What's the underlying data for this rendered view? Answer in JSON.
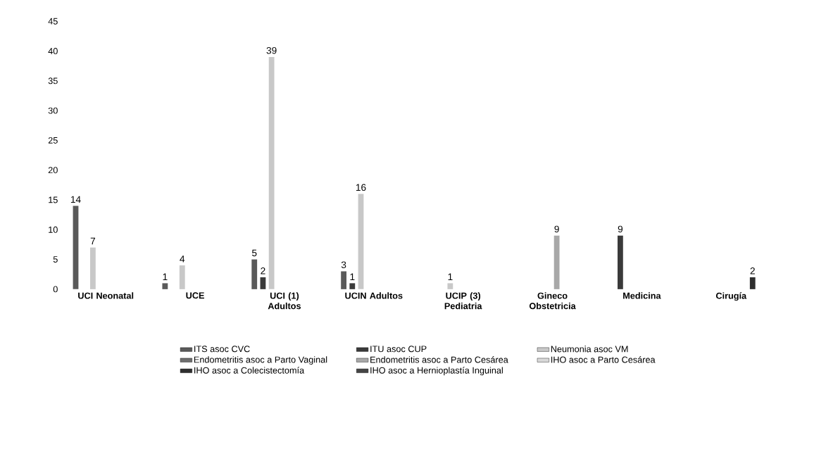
{
  "chart_data": {
    "type": "bar",
    "categories": [
      "UCI Neonatal",
      "UCE",
      "UCI (1) Adultos",
      "UCIN Adultos",
      "UCIP (3) Pediatria",
      "Gineco Obstetricia",
      "Medicina",
      "Cirugía"
    ],
    "series": [
      {
        "name": "ITS asoc CVC",
        "color": "#5a5a5a",
        "values": [
          14,
          1,
          5,
          3,
          null,
          null,
          null,
          null
        ]
      },
      {
        "name": "ITU asoc CUP",
        "color": "#3a3a3a",
        "values": [
          null,
          null,
          2,
          1,
          null,
          null,
          9,
          null
        ]
      },
      {
        "name": "Neumonia asoc VM",
        "color": "#c8c8c8",
        "values": [
          7,
          4,
          39,
          16,
          1,
          null,
          null,
          null
        ]
      },
      {
        "name": "Endometritis asoc a Parto Vaginal",
        "color": "#6e6e6e",
        "values": [
          null,
          null,
          null,
          null,
          null,
          null,
          null,
          null
        ]
      },
      {
        "name": "Endometritis asoc a Parto Cesárea",
        "color": "#a8a8a8",
        "values": [
          null,
          null,
          null,
          null,
          null,
          9,
          null,
          null
        ]
      },
      {
        "name": "IHO asoc a Parto Cesárea",
        "color": "#d8d8d8",
        "values": [
          null,
          null,
          null,
          null,
          null,
          null,
          null,
          null
        ]
      },
      {
        "name": "IHO asoc a Colecistectomía",
        "color": "#2e2e2e",
        "values": [
          null,
          null,
          null,
          null,
          null,
          null,
          null,
          2
        ]
      },
      {
        "name": "IHO asoc a Hernioplastía Inguinal",
        "color": "#444444",
        "values": [
          null,
          null,
          null,
          null,
          null,
          null,
          null,
          null
        ]
      }
    ],
    "ylim": [
      0,
      45
    ],
    "yticks": [
      0,
      5,
      10,
      15,
      20,
      25,
      30,
      35,
      40,
      45
    ],
    "data_labels": true,
    "grid": false,
    "legend": "bottom"
  }
}
